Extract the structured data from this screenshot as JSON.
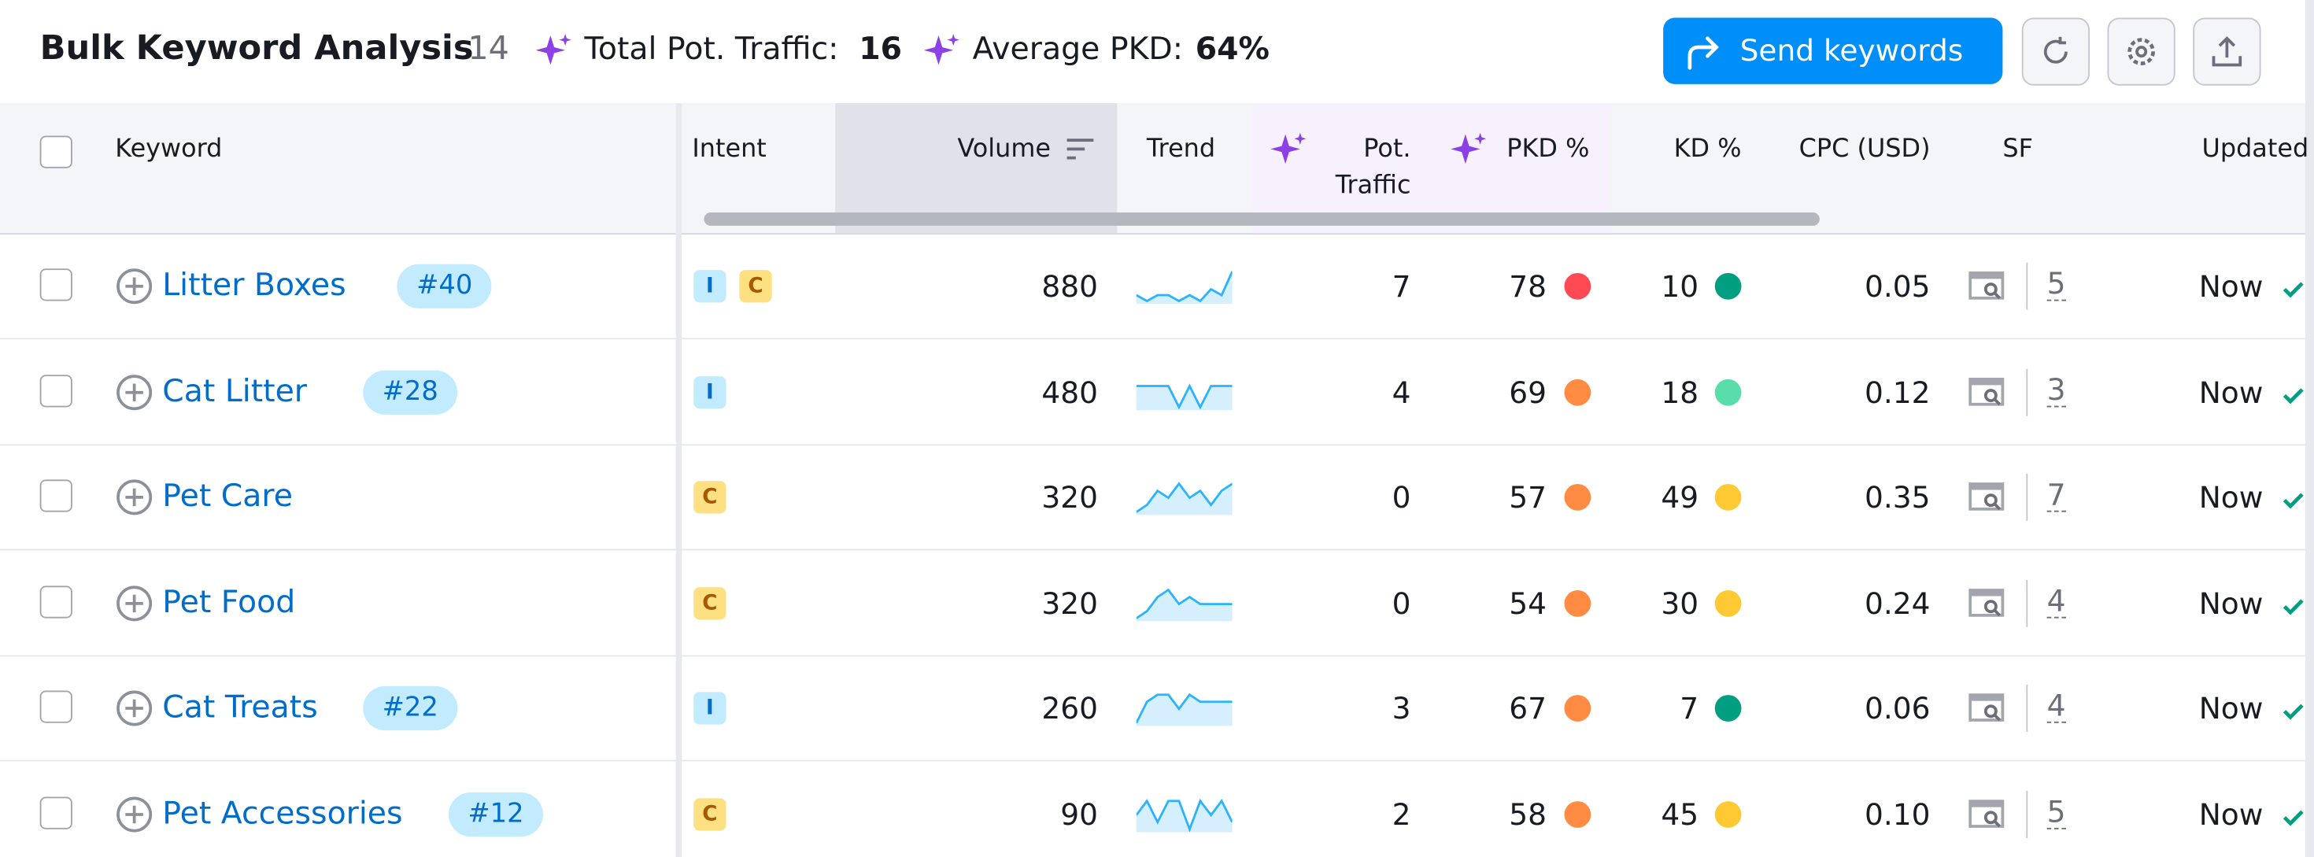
{
  "header": {
    "title": "Bulk Keyword Analysis",
    "count": "14",
    "stats": [
      {
        "label": "Total Pot. Traffic:",
        "value": "16"
      },
      {
        "label": "Average PKD:",
        "value": "64%"
      }
    ],
    "button": "Send keywords"
  },
  "table": {
    "columns": [
      "Keyword",
      "Intent",
      "Volume",
      "Trend",
      "Pot.",
      "Traffic",
      "PKD %",
      "KD %",
      "CPC (USD)",
      "SF",
      "Updated"
    ],
    "rows": [
      {
        "keyword": "Litter Boxes",
        "rank": "#40",
        "intent": [
          "I",
          "C"
        ],
        "volume": 880,
        "trend": [
          5,
          6,
          5,
          5,
          6,
          5,
          6,
          4,
          5,
          1
        ],
        "pot_traffic": 7,
        "pkd": 78,
        "pkd_color": "#ff4953",
        "kd": 10,
        "kd_color": "#009f81",
        "cpc": "0.05",
        "sf": 5,
        "updated": "Now"
      },
      {
        "keyword": "Cat Litter",
        "rank": "#28",
        "intent": [
          "I"
        ],
        "volume": 480,
        "trend": [
          2,
          2,
          2,
          2,
          5,
          2,
          5,
          2,
          2,
          2
        ],
        "pot_traffic": 4,
        "pkd": 69,
        "pkd_color": "#ff8c42",
        "kd": 18,
        "kd_color": "#59ddaa",
        "cpc": "0.12",
        "sf": 3,
        "updated": "Now"
      },
      {
        "keyword": "Pet Care",
        "intent": [
          "C"
        ],
        "volume": 320,
        "trend": [
          5,
          4,
          2,
          3,
          1,
          3,
          2,
          4,
          2,
          1
        ],
        "pot_traffic": 0,
        "pkd": 57,
        "pkd_color": "#ff8c42",
        "kd": 49,
        "kd_color": "#ffc933",
        "cpc": "0.35",
        "sf": 7,
        "updated": "Now"
      },
      {
        "keyword": "Pet Food",
        "intent": [
          "C"
        ],
        "volume": 320,
        "trend": [
          5,
          4,
          2,
          1,
          3,
          2,
          3,
          3,
          3,
          3
        ],
        "pot_traffic": 0,
        "pkd": 54,
        "pkd_color": "#ff8c42",
        "kd": 30,
        "kd_color": "#ffc933",
        "cpc": "0.24",
        "sf": 4,
        "updated": "Now"
      },
      {
        "keyword": "Cat Treats",
        "rank": "#22",
        "intent": [
          "I"
        ],
        "volume": 260,
        "trend": [
          5,
          2,
          1,
          1,
          3,
          1,
          2,
          2,
          2,
          2
        ],
        "pot_traffic": 3,
        "pkd": 67,
        "pkd_color": "#ff8c42",
        "kd": 7,
        "kd_color": "#009f81",
        "cpc": "0.06",
        "sf": 4,
        "updated": "Now"
      },
      {
        "keyword": "Pet Accessories",
        "rank": "#12",
        "intent": [
          "C"
        ],
        "volume": 90,
        "trend": [
          3,
          1,
          4,
          1,
          1,
          5,
          1,
          3,
          1,
          4
        ],
        "pot_traffic": 2,
        "pkd": 58,
        "pkd_color": "#ff8c42",
        "kd": 45,
        "kd_color": "#ffc933",
        "cpc": "0.10",
        "sf": 5,
        "updated": "Now"
      }
    ]
  }
}
